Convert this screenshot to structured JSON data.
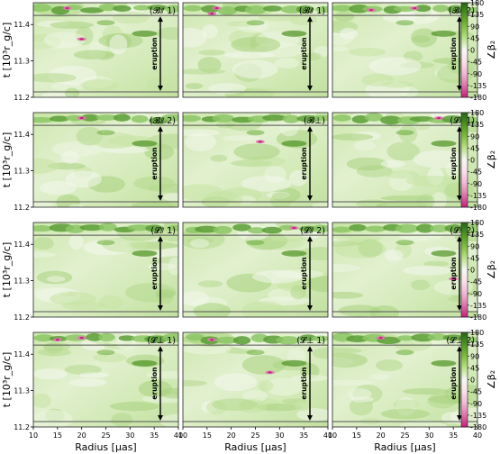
{
  "chart_data": {
    "type": "heatmap",
    "grid_rows": 4,
    "grid_cols": 3,
    "panel_labels": [
      [
        "(𝓑⫽ 1)",
        "(𝓑⫽ 1)",
        "(𝓑⫽ 2)"
      ],
      [
        "(𝓑⫽ 2)",
        "(𝓑⊥)",
        "(𝓛⫽ 1)"
      ],
      [
        "(𝓛⫽ 1)",
        "(𝓛⫽ 2)",
        "(𝓛⫽ 2)"
      ],
      [
        "(𝓛⊥ 1)",
        "(𝓛⊥ 1)",
        "(𝓛⊥ 2)"
      ]
    ],
    "xlabel": "Radius [μas]",
    "ylabel": "t [10³r_g/c]",
    "xlim": [
      10,
      40
    ],
    "ylim": [
      11.2,
      11.46
    ],
    "x_ticks": [
      10,
      15,
      20,
      25,
      30,
      35,
      40
    ],
    "y_ticks": [
      11.2,
      11.3,
      11.4
    ],
    "hlines": [
      11.215,
      11.425
    ],
    "annotation": "eruption",
    "colorbar": {
      "label": "∠β₂",
      "ticks": [
        180,
        135,
        90,
        45,
        0,
        -45,
        -90,
        -135,
        -180
      ],
      "colormap": "PiYG",
      "range": [
        -180,
        180
      ]
    },
    "hotspots": [
      [
        [
          20,
          11.36
        ],
        [
          17,
          11.445
        ]
      ],
      [
        [
          17,
          11.445
        ],
        [
          16,
          11.43
        ]
      ],
      [
        [
          27,
          11.445
        ],
        [
          18,
          11.44
        ]
      ],
      [
        [
          20,
          11.445
        ]
      ],
      [
        [
          26,
          11.38
        ]
      ],
      [
        [
          32,
          11.445
        ]
      ],
      [],
      [
        [
          33,
          11.445
        ]
      ],
      [
        [
          35,
          11.305
        ]
      ],
      [
        [
          20,
          11.445
        ],
        [
          15,
          11.44
        ]
      ],
      [
        [
          16,
          11.44
        ],
        [
          28,
          11.35
        ]
      ],
      [
        [
          20,
          11.445
        ]
      ]
    ]
  }
}
